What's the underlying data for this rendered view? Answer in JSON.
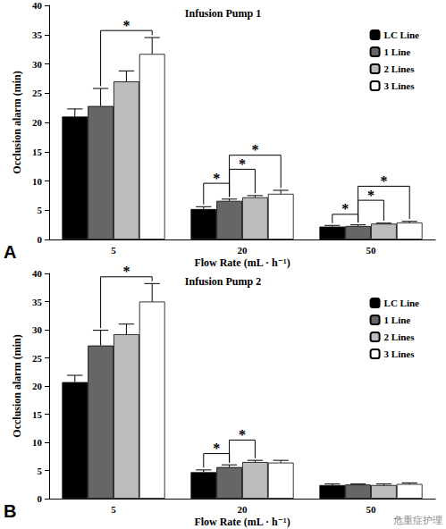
{
  "chart_data": [
    {
      "type": "bar",
      "title": "Infusion Pump 1",
      "panel": "A",
      "x_label": "Flow Rate (mL · h⁻¹)",
      "y_label": "Occlusion alarm (min)",
      "categories": [
        "5",
        "20",
        "50"
      ],
      "series": [
        {
          "name": "LC Line",
          "color": "#000000",
          "values": [
            21.0,
            5.2,
            2.2
          ],
          "errors": [
            1.3,
            0.4,
            0.2
          ]
        },
        {
          "name": "1 Line",
          "color": "#666666",
          "values": [
            22.8,
            6.6,
            2.3
          ],
          "errors": [
            3.0,
            0.3,
            0.2
          ]
        },
        {
          "name": "2 Lines",
          "color": "#bdbdbd",
          "values": [
            27.0,
            7.2,
            2.7
          ],
          "errors": [
            1.8,
            0.3,
            0.1
          ]
        },
        {
          "name": "3 Lines",
          "color": "#ffffff",
          "values": [
            31.7,
            7.8,
            2.9
          ],
          "errors": [
            2.8,
            0.6,
            0.2
          ]
        }
      ],
      "significance": [
        {
          "category": "5",
          "from": "1 Line",
          "to": "3 Lines",
          "label": "*"
        },
        {
          "category": "20",
          "from": "LC Line",
          "to": "1 Line",
          "label": "*"
        },
        {
          "category": "20",
          "from": "1 Line",
          "to": "2 Lines",
          "label": "*"
        },
        {
          "category": "20",
          "from": "1 Line",
          "to": "3 Lines",
          "label": "*"
        },
        {
          "category": "50",
          "from": "LC Line",
          "to": "1 Line",
          "label": "*"
        },
        {
          "category": "50",
          "from": "1 Line",
          "to": "2 Lines",
          "label": "*"
        },
        {
          "category": "50",
          "from": "1 Line",
          "to": "3 Lines",
          "label": "*"
        }
      ],
      "ylim": [
        0,
        40
      ],
      "yticks": [
        0,
        5,
        10,
        15,
        20,
        25,
        30,
        35,
        40
      ],
      "grid": false,
      "legend": "upper right"
    },
    {
      "type": "bar",
      "title": "Infusion Pump 2",
      "panel": "B",
      "x_label": "Flow Rate (mL · h⁻¹)",
      "y_label": "Occlusion alarm (min)",
      "categories": [
        "5",
        "20",
        "50"
      ],
      "series": [
        {
          "name": "LC Line",
          "color": "#000000",
          "values": [
            20.7,
            4.7,
            2.4
          ],
          "errors": [
            1.2,
            0.4,
            0.2
          ]
        },
        {
          "name": "1 Line",
          "color": "#666666",
          "values": [
            27.2,
            5.6,
            2.5
          ],
          "errors": [
            2.7,
            0.4,
            0.1
          ]
        },
        {
          "name": "2 Lines",
          "color": "#bdbdbd",
          "values": [
            29.2,
            6.5,
            2.4
          ],
          "errors": [
            1.8,
            0.3,
            0.2
          ]
        },
        {
          "name": "3 Lines",
          "color": "#ffffff",
          "values": [
            35.0,
            6.4,
            2.6
          ],
          "errors": [
            3.2,
            0.4,
            0.2
          ]
        }
      ],
      "significance": [
        {
          "category": "5",
          "from": "1 Line",
          "to": "3 Lines",
          "label": "*"
        },
        {
          "category": "20",
          "from": "LC Line",
          "to": "1 Line",
          "label": "*"
        },
        {
          "category": "20",
          "from": "1 Line",
          "to": "2 Lines",
          "label": "*"
        }
      ],
      "ylim": [
        0,
        40
      ],
      "yticks": [
        0,
        5,
        10,
        15,
        20,
        25,
        30,
        35,
        40
      ],
      "grid": false,
      "legend": "upper right"
    }
  ],
  "watermark": "危重症护理"
}
